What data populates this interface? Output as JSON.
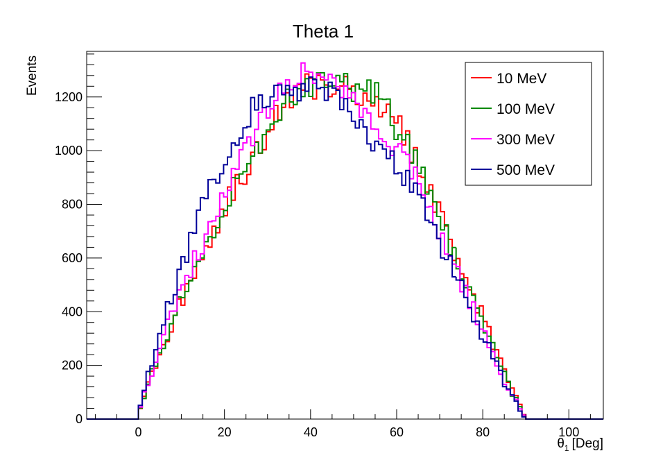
{
  "chart_data": {
    "type": "histogram",
    "title": "Theta 1",
    "xlabel_symbol": "θ",
    "xlabel_subscript": "1",
    "xlabel_unit": "[Deg]",
    "ylabel": "Events",
    "xlim": [
      -12,
      108
    ],
    "ylim": [
      0,
      1370
    ],
    "bin_width": 0.9,
    "x_ticks": [
      0,
      20,
      40,
      60,
      80,
      100
    ],
    "x_tick_labels": [
      "0",
      "20",
      "40",
      "60",
      "80",
      "100"
    ],
    "y_ticks": [
      0,
      200,
      400,
      600,
      800,
      1000,
      1200
    ],
    "y_tick_labels": [
      "0",
      "200",
      "400",
      "600",
      "800",
      "1000",
      "1200"
    ],
    "grid": false,
    "legend_position": "top-right",
    "series": [
      {
        "name": "10 MeV",
        "color": "#ff0000",
        "x": [
          0,
          5,
          10,
          15,
          20,
          25,
          30,
          35,
          40,
          45,
          50,
          55,
          60,
          65,
          70,
          75,
          80,
          85,
          90
        ],
        "y": [
          30,
          240,
          440,
          610,
          790,
          920,
          1070,
          1210,
          1240,
          1250,
          1220,
          1200,
          1110,
          950,
          770,
          560,
          380,
          170,
          0
        ]
      },
      {
        "name": "100 MeV",
        "color": "#008800",
        "x": [
          0,
          5,
          10,
          15,
          20,
          25,
          30,
          35,
          40,
          45,
          50,
          55,
          60,
          65,
          70,
          75,
          80,
          85,
          90
        ],
        "y": [
          30,
          250,
          450,
          630,
          800,
          930,
          1090,
          1220,
          1240,
          1300,
          1210,
          1220,
          1090,
          940,
          750,
          550,
          360,
          160,
          0
        ]
      },
      {
        "name": "300 MeV",
        "color": "#ff00ff",
        "x": [
          0,
          5,
          10,
          15,
          20,
          25,
          30,
          35,
          40,
          45,
          50,
          55,
          60,
          65,
          70,
          75,
          80,
          85,
          90
        ],
        "y": [
          30,
          270,
          480,
          660,
          840,
          1000,
          1150,
          1250,
          1290,
          1230,
          1180,
          1120,
          1000,
          880,
          700,
          510,
          330,
          150,
          0
        ]
      },
      {
        "name": "500 MeV",
        "color": "#000099",
        "x": [
          0,
          5,
          10,
          15,
          20,
          25,
          30,
          35,
          40,
          45,
          50,
          55,
          60,
          65,
          70,
          75,
          80,
          85,
          90
        ],
        "y": [
          30,
          330,
          560,
          800,
          950,
          1120,
          1210,
          1220,
          1230,
          1210,
          1120,
          1040,
          940,
          820,
          650,
          490,
          310,
          140,
          0
        ]
      }
    ]
  }
}
